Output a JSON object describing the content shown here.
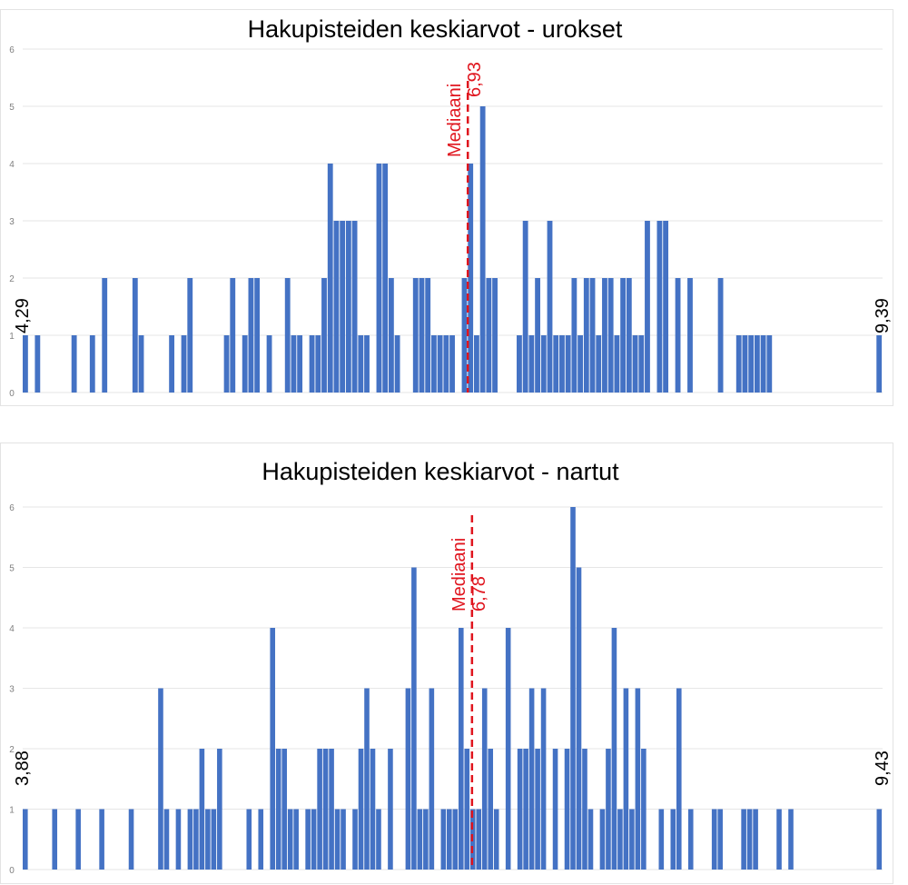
{
  "chart_data": [
    {
      "type": "bar",
      "title": "Hakupisteiden keskiarvot - urokset",
      "xlabel": "",
      "ylabel": "",
      "ylim": [
        0,
        6
      ],
      "yticks": [
        "0",
        "1",
        "2",
        "3",
        "4",
        "5",
        "6"
      ],
      "grid": true,
      "bar_color": "#4472c4",
      "x_min_label": "4,29",
      "x_max_label": "9,39",
      "x_range": [
        4.29,
        9.39
      ],
      "bin_count": 141,
      "median": {
        "label": "Mediaani",
        "value_label": "6,93",
        "value": 6.93,
        "color": "#e0151e"
      },
      "bins": [
        [
          0,
          1
        ],
        [
          2,
          1
        ],
        [
          8,
          1
        ],
        [
          11,
          1
        ],
        [
          13,
          2
        ],
        [
          18,
          2
        ],
        [
          19,
          1
        ],
        [
          24,
          1
        ],
        [
          26,
          1
        ],
        [
          27,
          2
        ],
        [
          33,
          1
        ],
        [
          34,
          2
        ],
        [
          36,
          1
        ],
        [
          37,
          2
        ],
        [
          38,
          2
        ],
        [
          40,
          1
        ],
        [
          43,
          2
        ],
        [
          44,
          1
        ],
        [
          45,
          1
        ],
        [
          47,
          1
        ],
        [
          48,
          1
        ],
        [
          49,
          2
        ],
        [
          50,
          4
        ],
        [
          51,
          3
        ],
        [
          52,
          3
        ],
        [
          53,
          3
        ],
        [
          54,
          3
        ],
        [
          55,
          1
        ],
        [
          56,
          1
        ],
        [
          58,
          4
        ],
        [
          59,
          4
        ],
        [
          60,
          2
        ],
        [
          61,
          1
        ],
        [
          64,
          2
        ],
        [
          65,
          2
        ],
        [
          66,
          2
        ],
        [
          67,
          1
        ],
        [
          68,
          1
        ],
        [
          69,
          1
        ],
        [
          70,
          1
        ],
        [
          72,
          2
        ],
        [
          73,
          4
        ],
        [
          74,
          1
        ],
        [
          75,
          5
        ],
        [
          76,
          2
        ],
        [
          77,
          2
        ],
        [
          81,
          1
        ],
        [
          82,
          3
        ],
        [
          83,
          1
        ],
        [
          84,
          2
        ],
        [
          85,
          1
        ],
        [
          86,
          3
        ],
        [
          87,
          1
        ],
        [
          88,
          1
        ],
        [
          89,
          1
        ],
        [
          90,
          2
        ],
        [
          91,
          1
        ],
        [
          92,
          2
        ],
        [
          93,
          2
        ],
        [
          94,
          1
        ],
        [
          95,
          2
        ],
        [
          96,
          2
        ],
        [
          97,
          1
        ],
        [
          98,
          2
        ],
        [
          99,
          2
        ],
        [
          100,
          1
        ],
        [
          101,
          1
        ],
        [
          102,
          3
        ],
        [
          104,
          3
        ],
        [
          105,
          3
        ],
        [
          107,
          2
        ],
        [
          109,
          2
        ],
        [
          114,
          2
        ],
        [
          117,
          1
        ],
        [
          118,
          1
        ],
        [
          119,
          1
        ],
        [
          120,
          1
        ],
        [
          121,
          1
        ],
        [
          122,
          1
        ],
        [
          140,
          1
        ]
      ]
    },
    {
      "type": "bar",
      "title": "Hakupisteiden keskiarvot - nartut",
      "xlabel": "",
      "ylabel": "",
      "ylim": [
        0,
        6.5
      ],
      "yticks": [
        "0",
        "1",
        "2",
        "3",
        "4",
        "5",
        "6"
      ],
      "grid": true,
      "bar_color": "#4472c4",
      "x_min_label": "3,88",
      "x_max_label": "9,43",
      "x_range": [
        3.88,
        9.43
      ],
      "bin_count": 146,
      "median": {
        "label": "Mediaani",
        "value_label": "6,78",
        "value": 6.78,
        "color": "#e0151e"
      },
      "bins": [
        [
          0,
          1
        ],
        [
          5,
          1
        ],
        [
          9,
          1
        ],
        [
          13,
          1
        ],
        [
          18,
          1
        ],
        [
          23,
          3
        ],
        [
          24,
          1
        ],
        [
          26,
          1
        ],
        [
          28,
          1
        ],
        [
          29,
          1
        ],
        [
          30,
          2
        ],
        [
          31,
          1
        ],
        [
          32,
          1
        ],
        [
          33,
          2
        ],
        [
          38,
          1
        ],
        [
          40,
          1
        ],
        [
          42,
          4
        ],
        [
          43,
          2
        ],
        [
          44,
          2
        ],
        [
          45,
          1
        ],
        [
          46,
          1
        ],
        [
          48,
          1
        ],
        [
          49,
          1
        ],
        [
          50,
          2
        ],
        [
          51,
          2
        ],
        [
          52,
          2
        ],
        [
          53,
          1
        ],
        [
          54,
          1
        ],
        [
          56,
          1
        ],
        [
          57,
          2
        ],
        [
          58,
          3
        ],
        [
          59,
          2
        ],
        [
          60,
          1
        ],
        [
          62,
          2
        ],
        [
          65,
          3
        ],
        [
          66,
          5
        ],
        [
          67,
          1
        ],
        [
          68,
          1
        ],
        [
          69,
          3
        ],
        [
          71,
          1
        ],
        [
          72,
          1
        ],
        [
          73,
          1
        ],
        [
          74,
          4
        ],
        [
          75,
          2
        ],
        [
          76,
          1
        ],
        [
          77,
          1
        ],
        [
          78,
          3
        ],
        [
          79,
          2
        ],
        [
          80,
          1
        ],
        [
          82,
          4
        ],
        [
          84,
          2
        ],
        [
          85,
          2
        ],
        [
          86,
          3
        ],
        [
          87,
          2
        ],
        [
          88,
          3
        ],
        [
          90,
          2
        ],
        [
          92,
          2
        ],
        [
          93,
          6
        ],
        [
          94,
          5
        ],
        [
          95,
          2
        ],
        [
          96,
          1
        ],
        [
          98,
          1
        ],
        [
          99,
          2
        ],
        [
          100,
          4
        ],
        [
          101,
          1
        ],
        [
          102,
          3
        ],
        [
          103,
          1
        ],
        [
          104,
          3
        ],
        [
          105,
          2
        ],
        [
          108,
          1
        ],
        [
          110,
          1
        ],
        [
          111,
          3
        ],
        [
          113,
          1
        ],
        [
          117,
          1
        ],
        [
          118,
          1
        ],
        [
          122,
          1
        ],
        [
          123,
          1
        ],
        [
          124,
          1
        ],
        [
          128,
          1
        ],
        [
          130,
          1
        ],
        [
          145,
          1
        ]
      ]
    }
  ]
}
